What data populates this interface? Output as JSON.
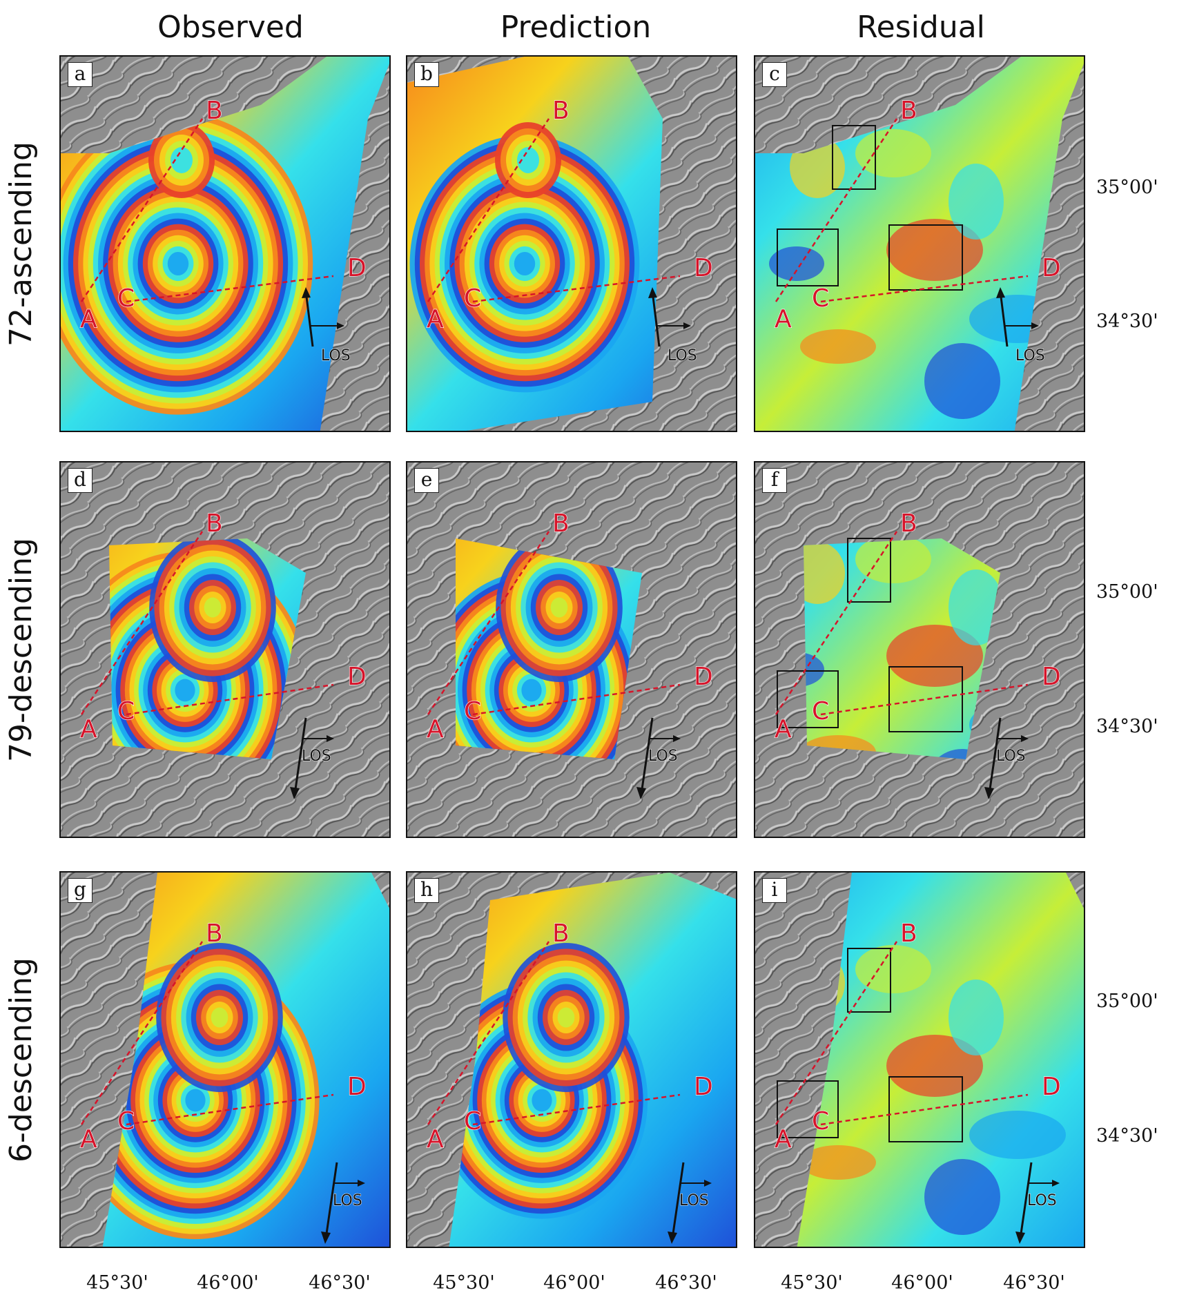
{
  "columns": [
    "Observed",
    "Prediction",
    "Residual"
  ],
  "rows": [
    "72-ascending",
    "79-descending",
    "6-descending"
  ],
  "panels": [
    {
      "letter": "a",
      "row": 0,
      "col": 0
    },
    {
      "letter": "b",
      "row": 0,
      "col": 1
    },
    {
      "letter": "c",
      "row": 0,
      "col": 2
    },
    {
      "letter": "d",
      "row": 1,
      "col": 0
    },
    {
      "letter": "e",
      "row": 1,
      "col": 1
    },
    {
      "letter": "f",
      "row": 1,
      "col": 2
    },
    {
      "letter": "g",
      "row": 2,
      "col": 0
    },
    {
      "letter": "h",
      "row": 2,
      "col": 1
    },
    {
      "letter": "i",
      "row": 2,
      "col": 2
    }
  ],
  "profile_labels": {
    "A": "A",
    "B": "B",
    "C": "C",
    "D": "D"
  },
  "los_label": "LOS",
  "latitude_ticks": [
    "35°00'",
    "34°30'"
  ],
  "longitude_ticks": [
    "45°30'",
    "46°00'",
    "46°30'"
  ],
  "colors": {
    "profile_line": "#d6142a",
    "hillshade": "#8f8f8f",
    "fringe_palette": [
      "#1f4fd8",
      "#1aa6f0",
      "#35e0ea",
      "#c6ee38",
      "#f7d21c",
      "#f7891c",
      "#e8412a"
    ]
  }
}
